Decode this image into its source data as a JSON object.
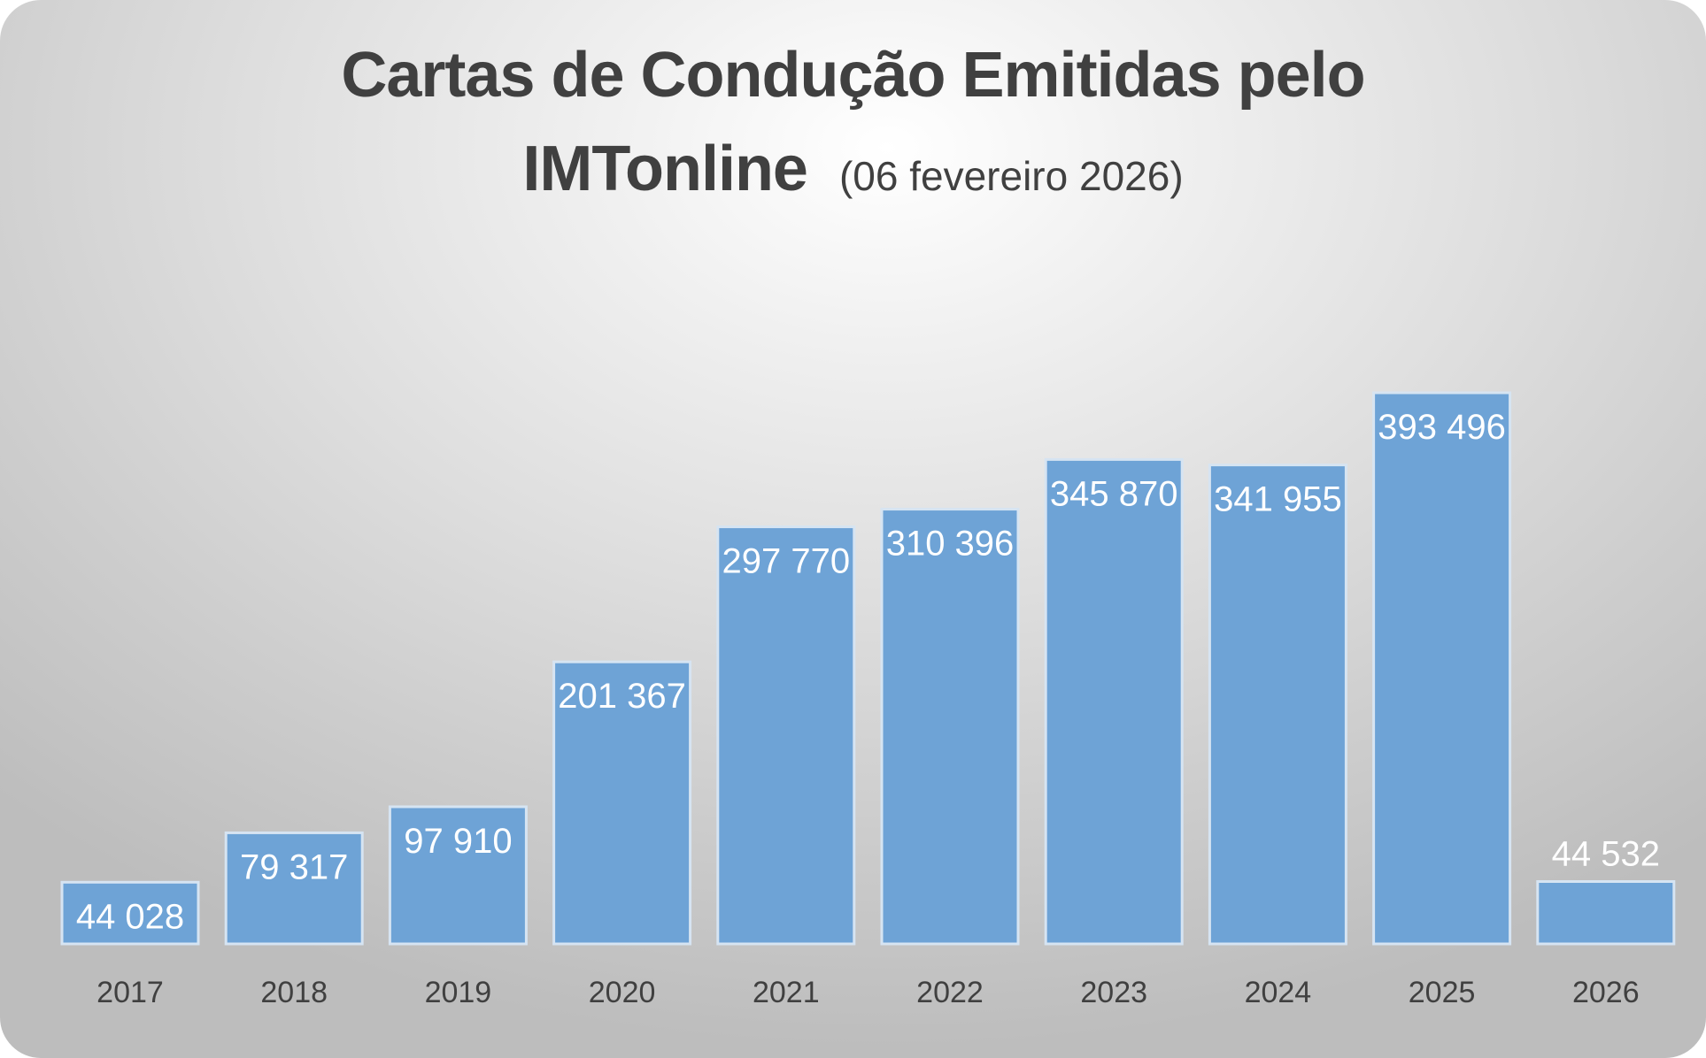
{
  "chart_data": {
    "type": "bar",
    "title": "Cartas de Condução Emitidas pelo IMTonline",
    "title_line1": "Cartas de Condução Emitidas pelo",
    "title_line2": "IMTonline",
    "subtitle": "(06 fevereiro 2026)",
    "xlabel": "",
    "ylabel": "",
    "grid": false,
    "legend": "none",
    "ylim": [
      0,
      400000
    ],
    "categories": [
      "2017",
      "2018",
      "2019",
      "2020",
      "2021",
      "2022",
      "2023",
      "2024",
      "2025",
      "2026"
    ],
    "values": [
      44028,
      79317,
      97910,
      201367,
      297770,
      310396,
      345870,
      341955,
      393496,
      44532
    ],
    "data_labels": [
      "44 028",
      "79 317",
      "97 910",
      "201 367",
      "297 770",
      "310 396",
      "345 870",
      "341 955",
      "393 496",
      "44 532"
    ],
    "data_label_position": [
      "inside-end",
      "inside-end",
      "inside-end",
      "inside-end",
      "inside-end",
      "inside-end",
      "inside-end",
      "inside-end",
      "inside-end",
      "outside-end"
    ],
    "bar_color": "#6ea3d6"
  }
}
